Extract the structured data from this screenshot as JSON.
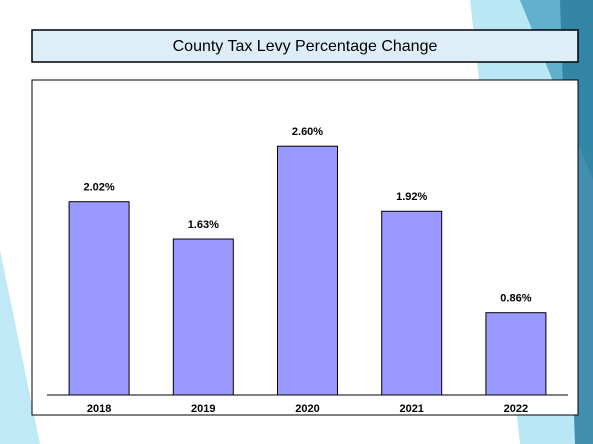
{
  "chart_data": {
    "type": "bar",
    "title": "County Tax Levy Percentage Change",
    "categories": [
      "2018",
      "2019",
      "2020",
      "2021",
      "2022"
    ],
    "values": [
      2.02,
      1.63,
      2.6,
      1.92,
      0.86
    ],
    "value_labels": [
      "2.02%",
      "1.63%",
      "2.60%",
      "1.92%",
      "0.86%"
    ],
    "color": "#9999ff",
    "ylim": [
      0,
      3.25
    ]
  }
}
